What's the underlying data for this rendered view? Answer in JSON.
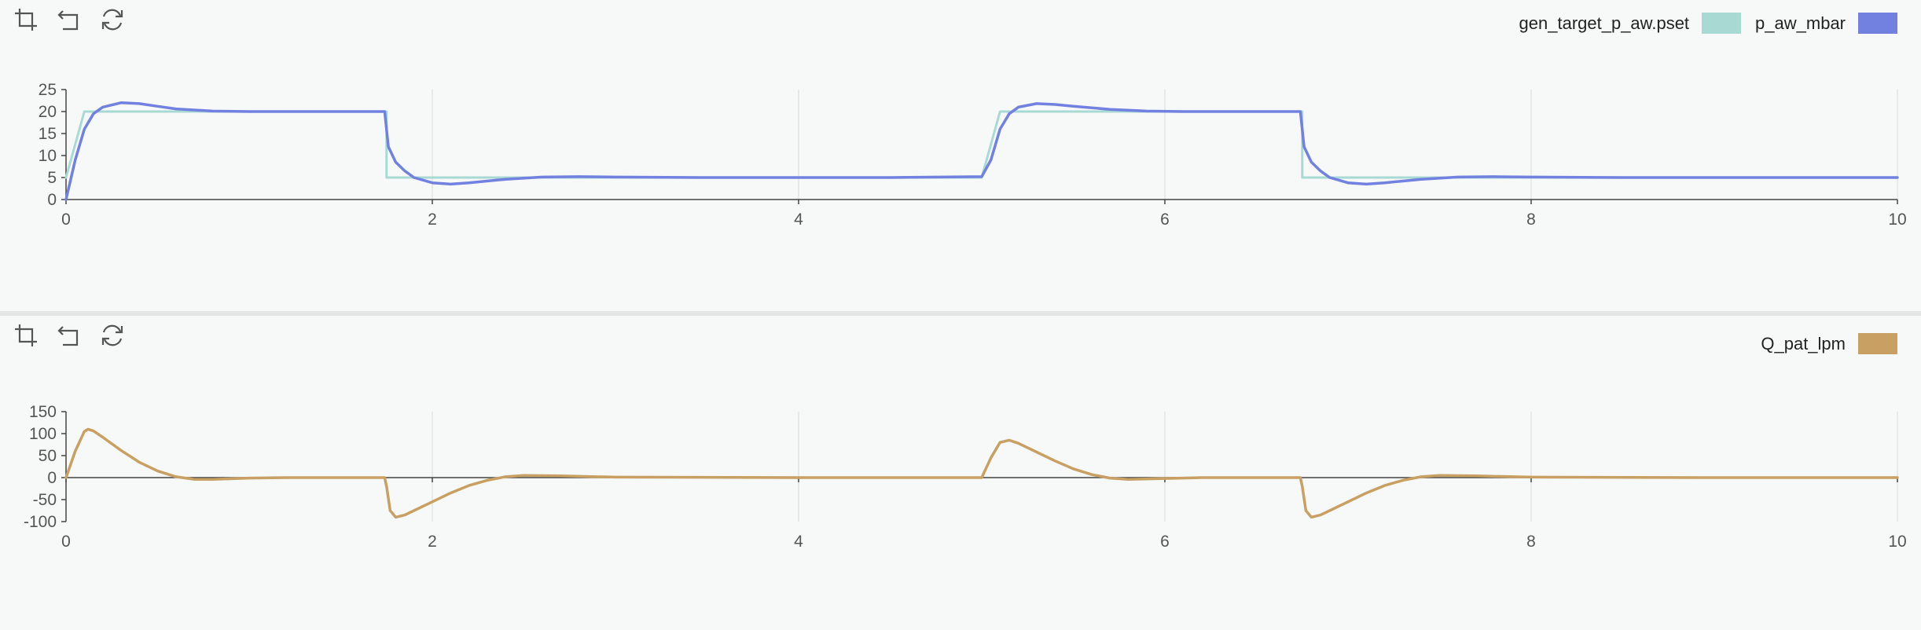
{
  "toolbar": {
    "icons": [
      "crop-icon",
      "undo-icon",
      "refresh-icon"
    ]
  },
  "colors": {
    "background": "#f7f9f8",
    "grid": "#e3e6e5",
    "axis": "#444444",
    "target": "#a9d9d3",
    "pressure": "#7281e0",
    "flow": "#c9a063"
  },
  "chart_data": [
    {
      "type": "line",
      "xlim": [
        0,
        10
      ],
      "ylim": [
        0,
        25
      ],
      "x_ticks": [
        0,
        2,
        4,
        6,
        8,
        10
      ],
      "y_ticks": [
        0,
        5,
        10,
        15,
        20,
        25
      ],
      "grid": true,
      "legend_position": "top-right",
      "series": [
        {
          "name": "gen_target_p_aw.pset",
          "color": "#a9d9d3",
          "x": [
            0,
            0.1,
            1.75,
            1.75,
            5.0,
            5.1,
            6.75,
            6.75,
            10
          ],
          "y": [
            5,
            20,
            20,
            5,
            5,
            20,
            20,
            5,
            5
          ]
        },
        {
          "name": "p_aw_mbar",
          "color": "#7281e0",
          "x": [
            0,
            0.05,
            0.1,
            0.15,
            0.2,
            0.3,
            0.4,
            0.5,
            0.6,
            0.8,
            1.0,
            1.2,
            1.5,
            1.74,
            1.76,
            1.8,
            1.85,
            1.9,
            2.0,
            2.1,
            2.2,
            2.4,
            2.6,
            2.8,
            3.0,
            3.5,
            4.0,
            4.5,
            5.0,
            5.05,
            5.1,
            5.15,
            5.2,
            5.3,
            5.4,
            5.5,
            5.7,
            5.9,
            6.1,
            6.4,
            6.74,
            6.76,
            6.8,
            6.85,
            6.9,
            7.0,
            7.1,
            7.2,
            7.4,
            7.6,
            7.8,
            8.0,
            8.5,
            9.0,
            9.5,
            10
          ],
          "y": [
            0,
            9,
            16,
            19.5,
            21,
            22,
            21.8,
            21.2,
            20.6,
            20.1,
            20,
            20,
            20,
            20,
            12,
            8.5,
            6.5,
            5,
            3.8,
            3.5,
            3.8,
            4.6,
            5.1,
            5.2,
            5.1,
            5,
            5,
            5,
            5.2,
            9,
            16,
            19.5,
            21,
            21.8,
            21.6,
            21.2,
            20.5,
            20.1,
            20,
            20,
            20,
            12,
            8.5,
            6.5,
            5,
            3.8,
            3.5,
            3.8,
            4.6,
            5.1,
            5.2,
            5.1,
            5,
            5,
            5,
            5
          ]
        }
      ]
    },
    {
      "type": "line",
      "xlim": [
        0,
        10
      ],
      "ylim": [
        -100,
        150
      ],
      "x_ticks": [
        0,
        2,
        4,
        6,
        8,
        10
      ],
      "y_ticks": [
        -100,
        -50,
        0,
        50,
        100,
        150
      ],
      "grid": true,
      "legend_position": "top-right",
      "series": [
        {
          "name": "Q_pat_lpm",
          "color": "#c9a063",
          "x": [
            0,
            0.05,
            0.1,
            0.12,
            0.15,
            0.2,
            0.3,
            0.4,
            0.5,
            0.6,
            0.7,
            0.8,
            1.0,
            1.2,
            1.5,
            1.74,
            1.75,
            1.77,
            1.8,
            1.85,
            1.9,
            2.0,
            2.1,
            2.2,
            2.3,
            2.4,
            2.5,
            2.7,
            3.0,
            4.0,
            5.0,
            5.05,
            5.1,
            5.15,
            5.2,
            5.3,
            5.4,
            5.5,
            5.6,
            5.7,
            5.8,
            6.0,
            6.2,
            6.74,
            6.75,
            6.77,
            6.8,
            6.85,
            6.9,
            7.0,
            7.1,
            7.2,
            7.3,
            7.4,
            7.5,
            7.7,
            8.0,
            9.0,
            10
          ],
          "y": [
            0,
            60,
            105,
            110,
            106,
            92,
            62,
            35,
            15,
            2,
            -4,
            -4,
            -1,
            0,
            0,
            0,
            -20,
            -75,
            -90,
            -85,
            -75,
            -55,
            -35,
            -18,
            -6,
            2,
            5,
            4,
            1,
            0,
            0,
            45,
            80,
            85,
            78,
            58,
            38,
            20,
            7,
            -1,
            -4,
            -2,
            0,
            0,
            -20,
            -75,
            -90,
            -85,
            -75,
            -55,
            -35,
            -18,
            -6,
            2,
            5,
            4,
            1,
            0,
            0
          ]
        }
      ]
    }
  ]
}
